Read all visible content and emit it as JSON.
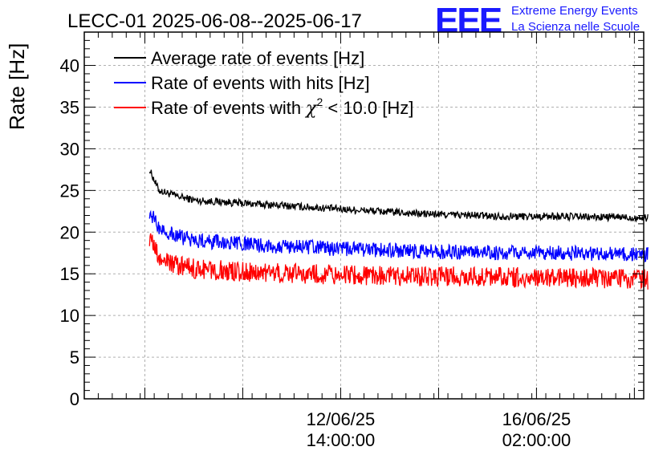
{
  "chart_data": {
    "type": "line",
    "title": "LECC-01 2025-06-08--2025-06-17",
    "ylabel": "Rate [Hz]",
    "xlabel": "",
    "ylim": [
      0,
      44
    ],
    "xlim": [
      "2025-06-08T00:00",
      "2025-06-18T00:00"
    ],
    "grid": true,
    "legend_position": "top-left",
    "y_ticks": [
      0,
      5,
      10,
      15,
      20,
      25,
      30,
      35,
      40
    ],
    "x_tick_labels": [
      {
        "date": "12/06/25",
        "time": "14:00:00",
        "x": "2025-06-12T14:00"
      },
      {
        "date": "16/06/25",
        "time": "02:00:00",
        "x": "2025-06-16T02:00"
      }
    ],
    "x_minor_ticks": [
      "2025-06-09T02:00",
      "2025-06-10T20:00",
      "2025-06-14T08:00",
      "2025-06-17T20:00"
    ],
    "series": [
      {
        "name": "Average rate of events [Hz]",
        "legend_text": "Average rate of events [Hz]",
        "color": "#000000",
        "x": [
          "2025-06-09T04:00",
          "2025-06-09T08:00",
          "2025-06-09T16:00",
          "2025-06-10T00:00",
          "2025-06-10T12:00",
          "2025-06-11T00:00",
          "2025-06-11T12:00",
          "2025-06-12T00:00",
          "2025-06-12T12:00",
          "2025-06-13T00:00",
          "2025-06-13T12:00",
          "2025-06-14T00:00",
          "2025-06-14T12:00",
          "2025-06-15T00:00",
          "2025-06-15T12:00",
          "2025-06-16T00:00",
          "2025-06-16T12:00",
          "2025-06-17T00:00",
          "2025-06-17T12:00",
          "2025-06-18T00:00",
          "2025-06-18T02:00"
        ],
        "y": [
          27.5,
          25.0,
          24.3,
          23.8,
          23.6,
          23.4,
          23.2,
          23.0,
          22.8,
          22.6,
          22.4,
          22.2,
          22.1,
          22.0,
          21.9,
          21.9,
          21.9,
          21.8,
          21.8,
          21.7,
          21.7
        ]
      },
      {
        "name": "Rate of events with hits [Hz]",
        "legend_text": "Rate of events with hits [Hz]",
        "color": "#0000ff",
        "x": [
          "2025-06-09T04:00",
          "2025-06-09T08:00",
          "2025-06-09T16:00",
          "2025-06-10T00:00",
          "2025-06-10T12:00",
          "2025-06-11T00:00",
          "2025-06-11T12:00",
          "2025-06-12T00:00",
          "2025-06-12T12:00",
          "2025-06-13T00:00",
          "2025-06-13T12:00",
          "2025-06-14T00:00",
          "2025-06-14T12:00",
          "2025-06-15T00:00",
          "2025-06-15T12:00",
          "2025-06-16T00:00",
          "2025-06-16T12:00",
          "2025-06-17T00:00",
          "2025-06-17T12:00",
          "2025-06-18T00:00",
          "2025-06-18T02:00"
        ],
        "y": [
          22.5,
          20.5,
          19.5,
          19.0,
          18.7,
          18.5,
          18.3,
          18.2,
          18.0,
          17.9,
          17.8,
          17.7,
          17.6,
          17.6,
          17.5,
          17.5,
          17.5,
          17.4,
          17.4,
          17.3,
          17.3
        ]
      },
      {
        "name": "Rate of events with χ² < 10.0 [Hz]",
        "legend_text": "Rate of events with",
        "legend_chi": "χ",
        "legend_sup": "2",
        "legend_tail": " < 10.0 [Hz]",
        "color": "#ff0000",
        "x": [
          "2025-06-09T04:00",
          "2025-06-09T08:00",
          "2025-06-09T16:00",
          "2025-06-10T00:00",
          "2025-06-10T12:00",
          "2025-06-11T00:00",
          "2025-06-11T12:00",
          "2025-06-12T00:00",
          "2025-06-12T12:00",
          "2025-06-13T00:00",
          "2025-06-13T12:00",
          "2025-06-14T00:00",
          "2025-06-14T12:00",
          "2025-06-15T00:00",
          "2025-06-15T12:00",
          "2025-06-16T00:00",
          "2025-06-16T12:00",
          "2025-06-17T00:00",
          "2025-06-17T12:00",
          "2025-06-18T00:00",
          "2025-06-18T02:00"
        ],
        "y": [
          19.5,
          16.8,
          16.0,
          15.6,
          15.4,
          15.2,
          15.1,
          15.0,
          14.9,
          14.8,
          14.8,
          14.7,
          14.7,
          14.6,
          14.6,
          14.6,
          14.5,
          14.5,
          14.4,
          14.4,
          14.3
        ]
      }
    ]
  },
  "logo": {
    "mark": "EEE",
    "line1": "Extreme Energy Events",
    "line2": "La Scienza nelle Scuole"
  },
  "colors": {
    "grid": "#b0b0b0",
    "logo": "#1a1aff"
  }
}
